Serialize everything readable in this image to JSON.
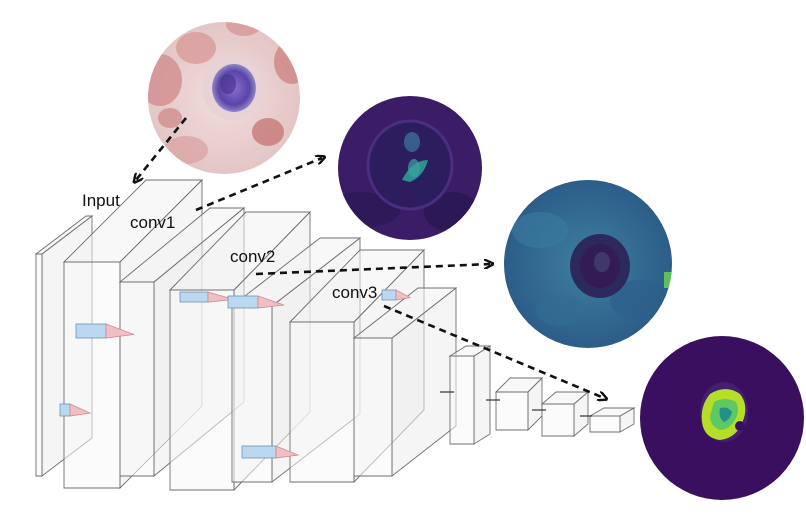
{
  "labels": {
    "input": "Input",
    "conv1": "conv1",
    "conv2": "conv2",
    "conv3": "conv3"
  },
  "colors": {
    "feature_dark": "#3b1e66",
    "feature_mid": "#2f5f8a",
    "feature_bright": "#b5de2b",
    "cell_nucleus": "#6a4fb5",
    "blood_cell": "#d98a8a",
    "kernel_blue": "#bcd7f0",
    "kernel_pink": "#f1bfc3"
  },
  "icons": {
    "input_image": "blood-smear-micrograph",
    "conv1_map": "feature-map-dark-purple",
    "conv2_map": "feature-map-teal",
    "conv3_map": "feature-map-bright-nucleus"
  }
}
